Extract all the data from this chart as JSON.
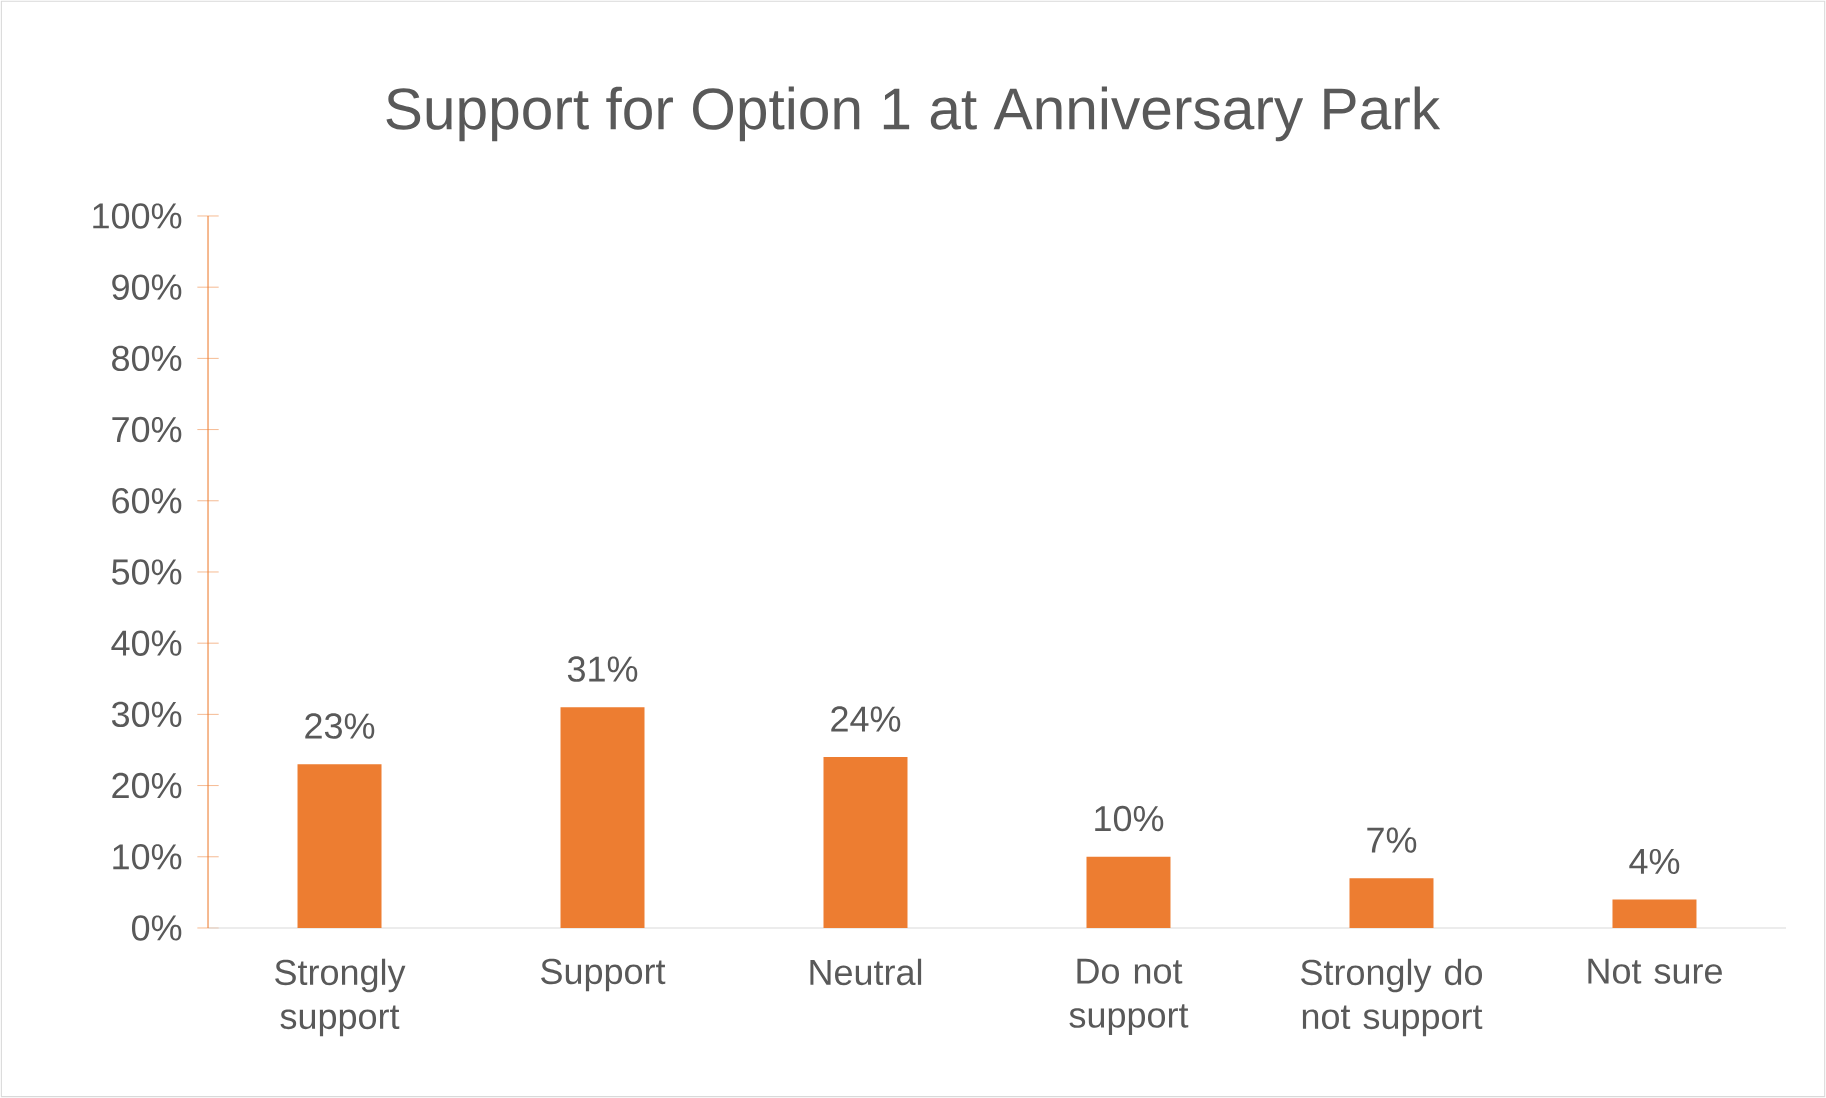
{
  "chart_data": {
    "type": "bar",
    "title": "Support for Option 1 at Anniversary Park",
    "categories": [
      "Strongly support",
      "Support",
      "Neutral",
      "Do not support",
      "Strongly do not support",
      "Not sure"
    ],
    "values": [
      23,
      31,
      24,
      10,
      7,
      4
    ],
    "value_labels": [
      "23%",
      "31%",
      "24%",
      "10%",
      "7%",
      "4%"
    ],
    "color": "#ed7d31",
    "ylim": [
      0,
      100
    ],
    "yticks": [
      {
        "value": 0,
        "label": "0%"
      },
      {
        "value": 10,
        "label": "10%"
      },
      {
        "value": 20,
        "label": "20%"
      },
      {
        "value": 30,
        "label": "30%"
      },
      {
        "value": 40,
        "label": "40%"
      },
      {
        "value": 50,
        "label": "50%"
      },
      {
        "value": 60,
        "label": "60%"
      },
      {
        "value": 70,
        "label": "70%"
      },
      {
        "value": 80,
        "label": "80%"
      },
      {
        "value": 90,
        "label": "90%"
      },
      {
        "value": 100,
        "label": "100%"
      }
    ]
  }
}
